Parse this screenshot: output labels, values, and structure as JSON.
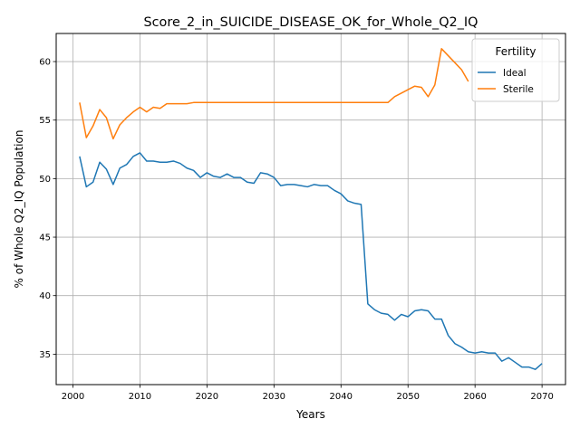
{
  "chart_data": {
    "type": "line",
    "title": "Score_2_in_SUICIDE_DISEASE_OK_for_Whole_Q2_IQ",
    "xlabel": "Years",
    "ylabel": "% of Whole Q2_IQ Population",
    "xlim": [
      1997.5,
      2073.5
    ],
    "ylim": [
      32.4,
      62.4
    ],
    "xticks": [
      2000,
      2010,
      2020,
      2030,
      2040,
      2050,
      2060,
      2070
    ],
    "yticks": [
      35,
      40,
      45,
      50,
      55,
      60
    ],
    "grid": true,
    "legend": {
      "title": "Fertility",
      "placement": "top-right"
    },
    "series": [
      {
        "name": "Ideal",
        "color": "#1f77b4",
        "x": [
          2001,
          2002,
          2003,
          2004,
          2005,
          2006,
          2007,
          2008,
          2009,
          2010,
          2011,
          2012,
          2013,
          2014,
          2015,
          2016,
          2017,
          2018,
          2019,
          2020,
          2021,
          2022,
          2023,
          2024,
          2025,
          2026,
          2027,
          2028,
          2029,
          2030,
          2031,
          2032,
          2033,
          2034,
          2035,
          2036,
          2037,
          2038,
          2039,
          2040,
          2041,
          2042,
          2043,
          2044,
          2045,
          2046,
          2047,
          2048,
          2049,
          2050,
          2051,
          2052,
          2053,
          2054,
          2055,
          2056,
          2057,
          2058,
          2059,
          2060,
          2061,
          2062,
          2063,
          2064,
          2065,
          2066,
          2067,
          2068,
          2069,
          2070
        ],
        "values": [
          51.9,
          49.3,
          49.7,
          51.4,
          50.8,
          49.5,
          50.9,
          51.2,
          51.9,
          52.2,
          51.5,
          51.5,
          51.4,
          51.4,
          51.5,
          51.3,
          50.9,
          50.7,
          50.1,
          50.5,
          50.2,
          50.1,
          50.4,
          50.1,
          50.1,
          49.7,
          49.6,
          50.5,
          50.4,
          50.1,
          49.4,
          49.5,
          49.5,
          49.4,
          49.3,
          49.5,
          49.4,
          49.4,
          49.0,
          48.7,
          48.1,
          47.9,
          47.8,
          39.3,
          38.8,
          38.5,
          38.4,
          37.9,
          38.4,
          38.2,
          38.7,
          38.8,
          38.7,
          38.0,
          38.0,
          36.6,
          35.9,
          35.6,
          35.2,
          35.1,
          35.2,
          35.1,
          35.1,
          34.4,
          34.7,
          34.3,
          33.9,
          33.9,
          33.7,
          34.2
        ]
      },
      {
        "name": "Sterile",
        "color": "#ff7f0e",
        "x": [
          2001,
          2002,
          2003,
          2004,
          2005,
          2006,
          2007,
          2008,
          2009,
          2010,
          2011,
          2012,
          2013,
          2014,
          2015,
          2016,
          2017,
          2018,
          2019,
          2020,
          2021,
          2022,
          2023,
          2024,
          2025,
          2026,
          2027,
          2028,
          2029,
          2030,
          2031,
          2032,
          2033,
          2034,
          2035,
          2036,
          2037,
          2038,
          2039,
          2040,
          2041,
          2042,
          2043,
          2044,
          2045,
          2046,
          2047,
          2048,
          2049,
          2050,
          2051,
          2052,
          2053,
          2054,
          2055,
          2056,
          2057,
          2058,
          2059
        ],
        "values": [
          56.5,
          53.5,
          54.5,
          55.9,
          55.2,
          53.4,
          54.6,
          55.2,
          55.7,
          56.1,
          55.7,
          56.1,
          56.0,
          56.4,
          56.4,
          56.4,
          56.4,
          56.5,
          56.5,
          56.5,
          56.5,
          56.5,
          56.5,
          56.5,
          56.5,
          56.5,
          56.5,
          56.5,
          56.5,
          56.5,
          56.5,
          56.5,
          56.5,
          56.5,
          56.5,
          56.5,
          56.5,
          56.5,
          56.5,
          56.5,
          56.5,
          56.5,
          56.5,
          56.5,
          56.5,
          56.5,
          56.5,
          57.0,
          57.3,
          57.6,
          57.9,
          57.8,
          57.0,
          58.0,
          61.1,
          60.5,
          59.9,
          59.3,
          58.3
        ]
      }
    ]
  }
}
